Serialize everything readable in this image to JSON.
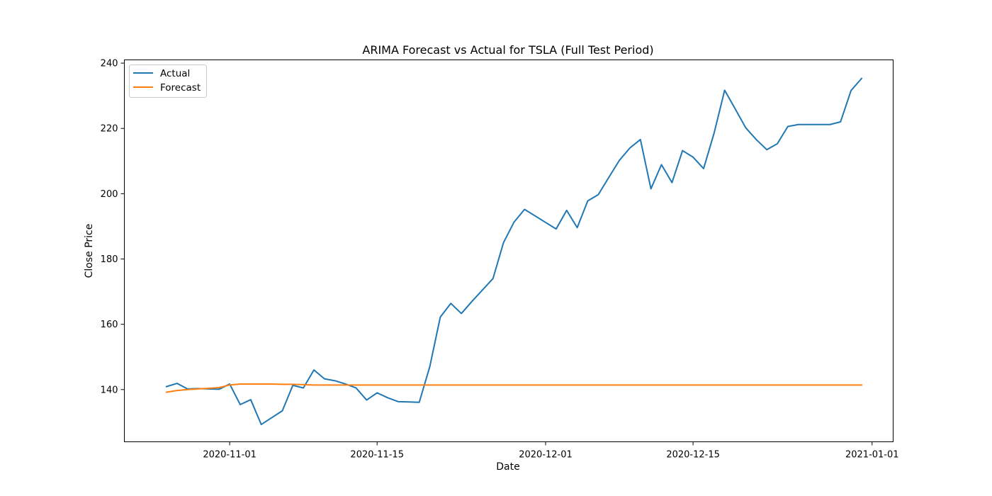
{
  "chart_data": {
    "type": "line",
    "title": "ARIMA Forecast vs Actual for TSLA (Full Test Period)",
    "xlabel": "Date",
    "ylabel": "Close Price",
    "ylim": [
      124,
      241
    ],
    "xlim": [
      "2020-10-22",
      "2021-01-03"
    ],
    "x_ticks": [
      "2020-11-01",
      "2020-11-15",
      "2020-12-01",
      "2020-12-15",
      "2021-01-01"
    ],
    "y_ticks": [
      140,
      160,
      180,
      200,
      220,
      240
    ],
    "grid": false,
    "legend_position": "upper-left",
    "series": [
      {
        "name": "Actual",
        "color": "#1f77b4",
        "x": [
          "2020-10-26",
          "2020-10-27",
          "2020-10-28",
          "2020-10-29",
          "2020-10-30",
          "2020-10-31",
          "2020-11-01",
          "2020-11-02",
          "2020-11-03",
          "2020-11-04",
          "2020-11-05",
          "2020-11-06",
          "2020-11-07",
          "2020-11-08",
          "2020-11-09",
          "2020-11-10",
          "2020-11-11",
          "2020-11-12",
          "2020-11-13",
          "2020-11-14",
          "2020-11-15",
          "2020-11-16",
          "2020-11-17",
          "2020-11-18",
          "2020-11-19",
          "2020-11-20",
          "2020-11-21",
          "2020-11-22",
          "2020-11-23",
          "2020-11-24",
          "2020-11-25",
          "2020-11-26",
          "2020-11-27",
          "2020-11-28",
          "2020-11-29",
          "2020-11-30",
          "2020-12-01",
          "2020-12-02",
          "2020-12-03",
          "2020-12-04",
          "2020-12-05",
          "2020-12-06",
          "2020-12-07",
          "2020-12-08",
          "2020-12-09",
          "2020-12-10",
          "2020-12-11",
          "2020-12-12",
          "2020-12-13",
          "2020-12-14",
          "2020-12-15",
          "2020-12-16",
          "2020-12-17",
          "2020-12-18",
          "2020-12-19",
          "2020-12-20",
          "2020-12-21",
          "2020-12-22",
          "2020-12-23",
          "2020-12-24",
          "2020-12-25",
          "2020-12-26",
          "2020-12-27",
          "2020-12-28",
          "2020-12-29",
          "2020-12-30",
          "2020-12-31"
        ],
        "values": [
          140.9,
          141.9,
          140.2,
          140.3,
          140.2,
          140.1,
          141.7,
          135.4,
          136.9,
          129.3,
          131.4,
          133.5,
          141.3,
          140.5,
          146.0,
          143.3,
          142.7,
          141.7,
          140.5,
          136.8,
          139.0,
          137.5,
          136.3,
          136.2,
          136.1,
          147.0,
          162.2,
          166.4,
          163.3,
          167.0,
          170.5,
          174.0,
          185.0,
          191.3,
          195.2,
          193.2,
          191.2,
          189.2,
          194.9,
          189.6,
          197.8,
          199.7,
          205.0,
          210.2,
          214.0,
          216.6,
          201.5,
          208.9,
          203.4,
          213.2,
          211.2,
          207.7,
          218.6,
          231.7,
          226.0,
          220.2,
          216.6,
          213.5,
          215.3,
          220.6,
          221.2,
          221.2,
          221.2,
          221.2,
          222.0,
          231.6,
          235.3
        ]
      },
      {
        "name": "Forecast",
        "color": "#ff7f0e",
        "x": [
          "2020-10-26",
          "2020-10-27",
          "2020-10-28",
          "2020-10-29",
          "2020-10-30",
          "2020-10-31",
          "2020-11-01",
          "2020-11-02",
          "2020-11-03",
          "2020-11-04",
          "2020-11-05",
          "2020-11-06",
          "2020-11-07",
          "2020-11-08",
          "2020-11-09",
          "2020-11-10",
          "2020-11-11",
          "2020-11-12",
          "2020-11-13",
          "2020-11-14",
          "2020-11-15",
          "2020-11-16",
          "2020-11-17",
          "2020-11-18",
          "2020-11-19",
          "2020-11-20",
          "2020-11-21",
          "2020-11-22",
          "2020-11-23",
          "2020-11-24",
          "2020-11-25",
          "2020-11-26",
          "2020-11-27",
          "2020-11-28",
          "2020-11-29",
          "2020-11-30",
          "2020-12-01",
          "2020-12-02",
          "2020-12-03",
          "2020-12-04",
          "2020-12-05",
          "2020-12-06",
          "2020-12-07",
          "2020-12-08",
          "2020-12-09",
          "2020-12-10",
          "2020-12-11",
          "2020-12-12",
          "2020-12-13",
          "2020-12-14",
          "2020-12-15",
          "2020-12-16",
          "2020-12-17",
          "2020-12-18",
          "2020-12-19",
          "2020-12-20",
          "2020-12-21",
          "2020-12-22",
          "2020-12-23",
          "2020-12-24",
          "2020-12-25",
          "2020-12-26",
          "2020-12-27",
          "2020-12-28",
          "2020-12-29",
          "2020-12-30",
          "2020-12-31"
        ],
        "values": [
          139.2,
          139.7,
          140.0,
          140.2,
          140.4,
          140.6,
          141.4,
          141.7,
          141.7,
          141.7,
          141.7,
          141.6,
          141.6,
          141.5,
          141.4,
          141.4,
          141.4,
          141.4,
          141.4,
          141.4,
          141.4,
          141.4,
          141.4,
          141.4,
          141.4,
          141.4,
          141.4,
          141.4,
          141.4,
          141.4,
          141.4,
          141.4,
          141.4,
          141.4,
          141.4,
          141.4,
          141.4,
          141.4,
          141.4,
          141.4,
          141.4,
          141.4,
          141.4,
          141.4,
          141.4,
          141.4,
          141.4,
          141.4,
          141.4,
          141.4,
          141.4,
          141.4,
          141.4,
          141.4,
          141.4,
          141.4,
          141.4,
          141.4,
          141.4,
          141.4,
          141.4,
          141.4,
          141.4,
          141.4,
          141.4,
          141.4,
          141.4
        ]
      }
    ]
  }
}
